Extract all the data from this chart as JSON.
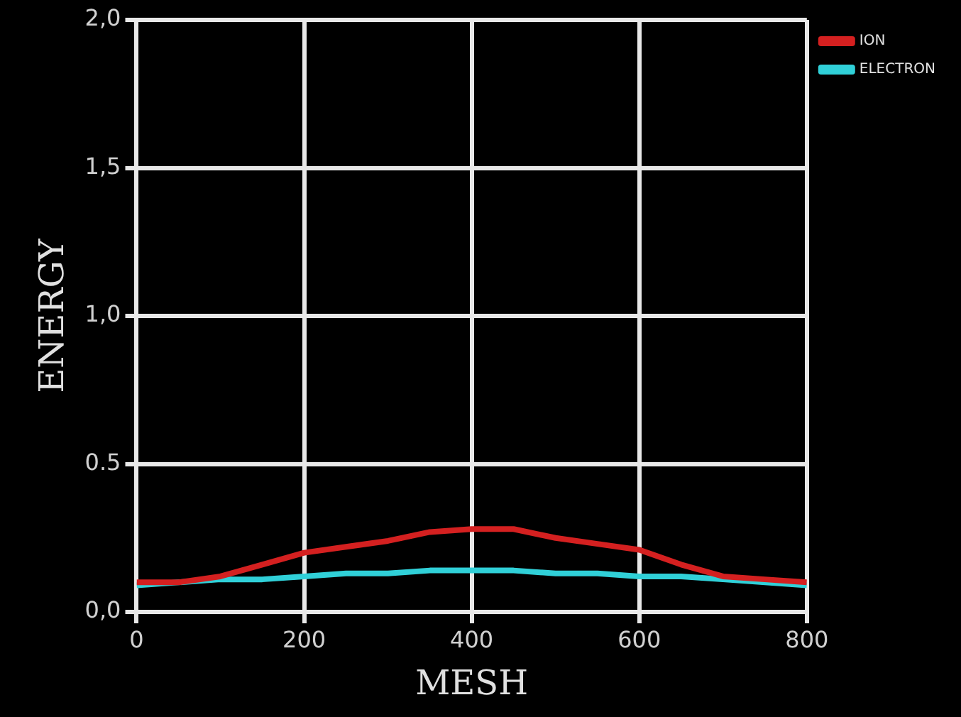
{
  "chart_data": {
    "type": "line",
    "xlabel": "MESH",
    "ylabel": "ENERGY",
    "x": [
      0,
      50,
      100,
      150,
      200,
      250,
      300,
      350,
      400,
      450,
      500,
      550,
      600,
      650,
      700,
      750,
      800
    ],
    "series": [
      {
        "name": "ION",
        "color": "#d42020",
        "values": [
          0.1,
          0.1,
          0.12,
          0.16,
          0.2,
          0.22,
          0.24,
          0.27,
          0.28,
          0.28,
          0.25,
          0.23,
          0.21,
          0.16,
          0.12,
          0.11,
          0.1
        ]
      },
      {
        "name": "ELECTRON",
        "color": "#30d0d8",
        "values": [
          0.09,
          0.1,
          0.11,
          0.11,
          0.12,
          0.13,
          0.13,
          0.14,
          0.14,
          0.14,
          0.13,
          0.13,
          0.12,
          0.12,
          0.11,
          0.1,
          0.09
        ]
      }
    ],
    "xlim": [
      0,
      800
    ],
    "xticks": [
      0,
      200,
      400,
      600,
      800
    ],
    "ylim": [
      0,
      2
    ],
    "yticks": [
      {
        "value": 0,
        "label": "0,0"
      },
      {
        "value": 0.5,
        "label": "0.5"
      },
      {
        "value": 1,
        "label": "1,0"
      },
      {
        "value": 1.5,
        "label": "1,5"
      },
      {
        "value": 2,
        "label": "2,0"
      }
    ],
    "grid": true,
    "legend": "top right",
    "marker": "none",
    "line_style": "solid"
  }
}
